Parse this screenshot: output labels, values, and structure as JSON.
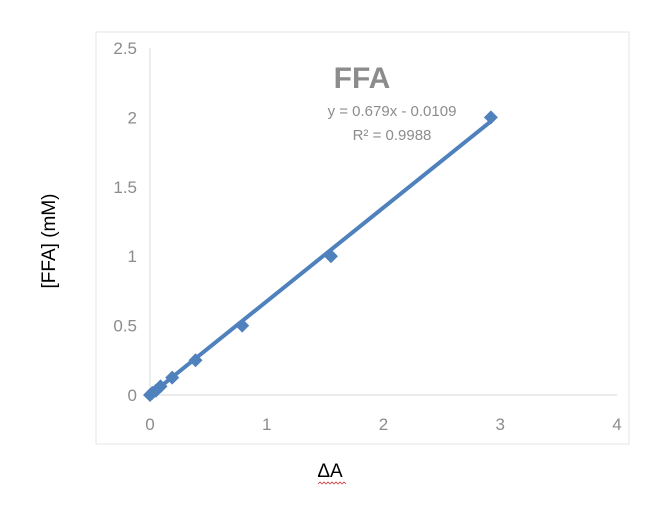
{
  "chart_data": {
    "type": "scatter",
    "title": "FFA",
    "xlabel": "ΔA",
    "ylabel": "[FFA] (mM)",
    "xlim": [
      0,
      4
    ],
    "ylim": [
      0,
      2.5
    ],
    "x_ticks": [
      0,
      1,
      2,
      3,
      4
    ],
    "y_ticks": [
      0,
      0.5,
      1,
      1.5,
      2,
      2.5
    ],
    "x_tick_labels": [
      "0",
      "1",
      "2",
      "3",
      "4"
    ],
    "y_tick_labels": [
      "0",
      "0.5",
      "1",
      "1.5",
      "2",
      "2.5"
    ],
    "grid": false,
    "legend": "none",
    "series": [
      {
        "x": [
          0,
          0.02,
          0.05,
          0.09,
          0.19,
          0.39,
          0.79,
          1.55,
          2.92
        ],
        "y": [
          0,
          0.0156,
          0.031,
          0.0625,
          0.125,
          0.25,
          0.5,
          1.0,
          2.0
        ],
        "marker": "diamond",
        "color": "#4f81bd"
      }
    ],
    "trendline": {
      "type": "linear",
      "slope": 0.679,
      "intercept": -0.0109,
      "x_range": [
        0,
        2.92
      ],
      "color": "#4f81bd",
      "equation": "y = 0.679x - 0.0109",
      "r_squared": "R² = 0.9988"
    }
  }
}
